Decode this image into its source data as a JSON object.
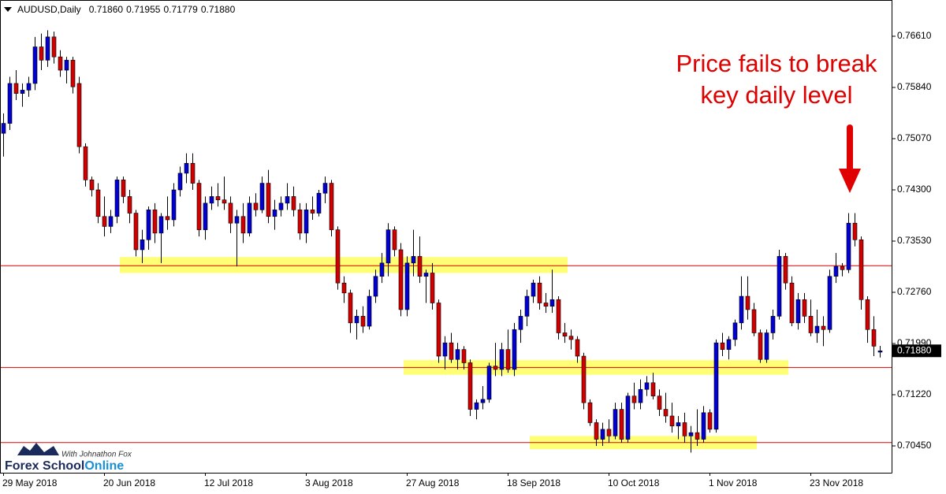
{
  "chart_data": {
    "type": "candlestick",
    "symbol": "AUDUSD,Daily",
    "header_labels": [
      "0.71860",
      "0.71955",
      "0.71779",
      "0.71880"
    ],
    "annotation": [
      "Price fails to break",
      "key daily level"
    ],
    "logo": {
      "name_a": "Forex School",
      "name_b": "Online",
      "tagline": "With Johnathon Fox"
    },
    "up_color": "#0000d0",
    "down_color": "#d00000",
    "ylim": [
      0.70047,
      0.77155
    ],
    "yticks": [
      {
        "value": 0.7661,
        "label": "0.76610"
      },
      {
        "value": 0.7584,
        "label": "0.75840"
      },
      {
        "value": 0.7507,
        "label": "0.75070"
      },
      {
        "value": 0.743,
        "label": "0.74300"
      },
      {
        "value": 0.7353,
        "label": "0.73530"
      },
      {
        "value": 0.7276,
        "label": "0.72760"
      },
      {
        "value": 0.7199,
        "label": "0.71990"
      },
      {
        "value": 0.7122,
        "label": "0.71220"
      },
      {
        "value": 0.7045,
        "label": "0.70450"
      }
    ],
    "levels": [
      0.7316,
      0.7163,
      0.705
    ],
    "zones": [
      {
        "x_range": [
          19,
          89
        ],
        "low": 0.7305,
        "high": 0.7329
      },
      {
        "x_range": [
          64,
          124
        ],
        "low": 0.7152,
        "high": 0.7174
      },
      {
        "x_range": [
          84,
          119
        ],
        "low": 0.704,
        "high": 0.706
      }
    ],
    "categories": [
      "29 May 2018",
      null,
      null,
      null,
      null,
      null,
      null,
      null,
      null,
      null,
      null,
      null,
      null,
      null,
      null,
      null,
      "20 Jun 2018",
      null,
      null,
      null,
      null,
      null,
      null,
      null,
      null,
      null,
      null,
      null,
      null,
      null,
      null,
      null,
      "12 Jul 2018",
      null,
      null,
      null,
      null,
      null,
      null,
      null,
      null,
      null,
      null,
      null,
      null,
      null,
      null,
      null,
      "3 Aug 2018",
      null,
      null,
      null,
      null,
      null,
      null,
      null,
      null,
      null,
      null,
      null,
      null,
      null,
      null,
      null,
      "27 Aug 2018",
      null,
      null,
      null,
      null,
      null,
      null,
      null,
      null,
      null,
      null,
      null,
      null,
      null,
      null,
      null,
      "18 Sep 2018",
      null,
      null,
      null,
      null,
      null,
      null,
      null,
      null,
      null,
      null,
      null,
      null,
      null,
      null,
      null,
      "10 Oct 2018",
      null,
      null,
      null,
      null,
      null,
      null,
      null,
      null,
      null,
      null,
      null,
      null,
      null,
      null,
      null,
      "1 Nov 2018",
      null,
      null,
      null,
      null,
      null,
      null,
      null,
      null,
      null,
      null,
      null,
      null,
      null,
      null,
      null,
      "23 Nov 2018",
      null,
      null,
      null,
      null,
      null,
      null,
      null,
      null,
      null,
      null,
      null
    ],
    "candles": [
      [
        0.7515,
        0.7545,
        0.748,
        0.753
      ],
      [
        0.753,
        0.76,
        0.752,
        0.759
      ],
      [
        0.759,
        0.761,
        0.7565,
        0.7575
      ],
      [
        0.7575,
        0.759,
        0.7555,
        0.758
      ],
      [
        0.758,
        0.76,
        0.757,
        0.759
      ],
      [
        0.759,
        0.766,
        0.758,
        0.7645
      ],
      [
        0.7645,
        0.7665,
        0.761,
        0.7625
      ],
      [
        0.7625,
        0.767,
        0.7615,
        0.766
      ],
      [
        0.766,
        0.7668,
        0.762,
        0.763
      ],
      [
        0.763,
        0.764,
        0.76,
        0.761
      ],
      [
        0.761,
        0.763,
        0.759,
        0.7625
      ],
      [
        0.7625,
        0.763,
        0.7575,
        0.7585
      ],
      [
        0.759,
        0.76,
        0.7485,
        0.7495
      ],
      [
        0.7495,
        0.75,
        0.7435,
        0.7445
      ],
      [
        0.7445,
        0.745,
        0.742,
        0.743
      ],
      [
        0.743,
        0.744,
        0.738,
        0.739
      ],
      [
        0.739,
        0.742,
        0.736,
        0.7375
      ],
      [
        0.7375,
        0.74,
        0.7365,
        0.739
      ],
      [
        0.739,
        0.745,
        0.738,
        0.7445
      ],
      [
        0.7445,
        0.745,
        0.741,
        0.742
      ],
      [
        0.742,
        0.743,
        0.738,
        0.7395
      ],
      [
        0.7395,
        0.74,
        0.733,
        0.734
      ],
      [
        0.734,
        0.737,
        0.732,
        0.7355
      ],
      [
        0.7355,
        0.7405,
        0.734,
        0.74
      ],
      [
        0.74,
        0.741,
        0.735,
        0.7365
      ],
      [
        0.7365,
        0.7395,
        0.732,
        0.739
      ],
      [
        0.739,
        0.742,
        0.737,
        0.7385
      ],
      [
        0.7385,
        0.744,
        0.7375,
        0.743
      ],
      [
        0.743,
        0.7465,
        0.742,
        0.7455
      ],
      [
        0.7455,
        0.7485,
        0.744,
        0.747
      ],
      [
        0.747,
        0.7485,
        0.743,
        0.744
      ],
      [
        0.744,
        0.7445,
        0.736,
        0.737
      ],
      [
        0.737,
        0.742,
        0.7355,
        0.741
      ],
      [
        0.741,
        0.7435,
        0.74,
        0.742
      ],
      [
        0.742,
        0.744,
        0.7405,
        0.7415
      ],
      [
        0.7415,
        0.745,
        0.74,
        0.741
      ],
      [
        0.741,
        0.742,
        0.7365,
        0.738
      ],
      [
        0.738,
        0.74,
        0.7315,
        0.739
      ],
      [
        0.739,
        0.741,
        0.735,
        0.7365
      ],
      [
        0.7365,
        0.742,
        0.736,
        0.741
      ],
      [
        0.741,
        0.7425,
        0.739,
        0.74
      ],
      [
        0.74,
        0.745,
        0.7395,
        0.744
      ],
      [
        0.744,
        0.746,
        0.738,
        0.739
      ],
      [
        0.739,
        0.7415,
        0.737,
        0.74
      ],
      [
        0.74,
        0.742,
        0.739,
        0.741
      ],
      [
        0.741,
        0.744,
        0.74,
        0.742
      ],
      [
        0.742,
        0.7435,
        0.739,
        0.74
      ],
      [
        0.74,
        0.741,
        0.7355,
        0.7365
      ],
      [
        0.7365,
        0.741,
        0.735,
        0.74
      ],
      [
        0.74,
        0.742,
        0.7385,
        0.7395
      ],
      [
        0.7395,
        0.743,
        0.739,
        0.7425
      ],
      [
        0.7425,
        0.745,
        0.741,
        0.744
      ],
      [
        0.744,
        0.7445,
        0.736,
        0.737
      ],
      [
        0.737,
        0.7375,
        0.728,
        0.729
      ],
      [
        0.729,
        0.73,
        0.726,
        0.7275
      ],
      [
        0.7275,
        0.728,
        0.7215,
        0.723
      ],
      [
        0.723,
        0.725,
        0.7205,
        0.724
      ],
      [
        0.724,
        0.7255,
        0.7215,
        0.7225
      ],
      [
        0.7225,
        0.728,
        0.722,
        0.727
      ],
      [
        0.727,
        0.731,
        0.726,
        0.73
      ],
      [
        0.73,
        0.7335,
        0.729,
        0.732
      ],
      [
        0.732,
        0.738,
        0.73,
        0.737
      ],
      [
        0.737,
        0.7375,
        0.733,
        0.734
      ],
      [
        0.734,
        0.735,
        0.724,
        0.725
      ],
      [
        0.725,
        0.733,
        0.724,
        0.732
      ],
      [
        0.732,
        0.737,
        0.73,
        0.733
      ],
      [
        0.733,
        0.736,
        0.729,
        0.73
      ],
      [
        0.73,
        0.731,
        0.726,
        0.7305
      ],
      [
        0.7305,
        0.732,
        0.725,
        0.726
      ],
      [
        0.726,
        0.7265,
        0.717,
        0.718
      ],
      [
        0.718,
        0.721,
        0.716,
        0.72
      ],
      [
        0.72,
        0.7215,
        0.717,
        0.7175
      ],
      [
        0.7175,
        0.72,
        0.716,
        0.719
      ],
      [
        0.719,
        0.7195,
        0.716,
        0.717
      ],
      [
        0.717,
        0.7175,
        0.709,
        0.71
      ],
      [
        0.71,
        0.7115,
        0.7085,
        0.711
      ],
      [
        0.711,
        0.7135,
        0.71,
        0.7115
      ],
      [
        0.7115,
        0.717,
        0.711,
        0.7165
      ],
      [
        0.7165,
        0.72,
        0.715,
        0.716
      ],
      [
        0.716,
        0.72,
        0.715,
        0.719
      ],
      [
        0.719,
        0.722,
        0.7155,
        0.716
      ],
      [
        0.716,
        0.723,
        0.715,
        0.722
      ],
      [
        0.722,
        0.725,
        0.72,
        0.724
      ],
      [
        0.724,
        0.728,
        0.7225,
        0.727
      ],
      [
        0.727,
        0.7295,
        0.726,
        0.729
      ],
      [
        0.729,
        0.73,
        0.725,
        0.726
      ],
      [
        0.726,
        0.7275,
        0.7245,
        0.7255
      ],
      [
        0.7255,
        0.731,
        0.7245,
        0.7265
      ],
      [
        0.7265,
        0.727,
        0.7205,
        0.7215
      ],
      [
        0.7215,
        0.723,
        0.72,
        0.721
      ],
      [
        0.721,
        0.722,
        0.719,
        0.7205
      ],
      [
        0.7205,
        0.721,
        0.717,
        0.718
      ],
      [
        0.718,
        0.7185,
        0.71,
        0.711
      ],
      [
        0.711,
        0.7115,
        0.7075,
        0.708
      ],
      [
        0.708,
        0.7085,
        0.7045,
        0.7055
      ],
      [
        0.7055,
        0.708,
        0.7045,
        0.707
      ],
      [
        0.707,
        0.7085,
        0.705,
        0.706
      ],
      [
        0.706,
        0.711,
        0.7055,
        0.71
      ],
      [
        0.71,
        0.711,
        0.705,
        0.7055
      ],
      [
        0.7055,
        0.7125,
        0.705,
        0.712
      ],
      [
        0.712,
        0.714,
        0.71,
        0.711
      ],
      [
        0.711,
        0.7145,
        0.71,
        0.713
      ],
      [
        0.713,
        0.715,
        0.712,
        0.714
      ],
      [
        0.714,
        0.7155,
        0.7115,
        0.712
      ],
      [
        0.712,
        0.713,
        0.709,
        0.71
      ],
      [
        0.71,
        0.7125,
        0.708,
        0.709
      ],
      [
        0.709,
        0.711,
        0.7065,
        0.7075
      ],
      [
        0.7075,
        0.709,
        0.7055,
        0.708
      ],
      [
        0.708,
        0.7095,
        0.705,
        0.706
      ],
      [
        0.706,
        0.7075,
        0.7035,
        0.7065
      ],
      [
        0.7065,
        0.71,
        0.7045,
        0.7055
      ],
      [
        0.7055,
        0.7105,
        0.705,
        0.7095
      ],
      [
        0.7095,
        0.71,
        0.7065,
        0.707
      ],
      [
        0.707,
        0.7205,
        0.7065,
        0.72
      ],
      [
        0.72,
        0.7215,
        0.718,
        0.719
      ],
      [
        0.719,
        0.721,
        0.7175,
        0.7205
      ],
      [
        0.7205,
        0.7235,
        0.7195,
        0.723
      ],
      [
        0.723,
        0.73,
        0.722,
        0.727
      ],
      [
        0.727,
        0.73,
        0.7235,
        0.725
      ],
      [
        0.725,
        0.726,
        0.721,
        0.7215
      ],
      [
        0.7215,
        0.722,
        0.717,
        0.7175
      ],
      [
        0.7175,
        0.722,
        0.717,
        0.7215
      ],
      [
        0.7215,
        0.725,
        0.7205,
        0.724
      ],
      [
        0.724,
        0.734,
        0.7235,
        0.733
      ],
      [
        0.733,
        0.7335,
        0.728,
        0.729
      ],
      [
        0.729,
        0.73,
        0.7225,
        0.723
      ],
      [
        0.723,
        0.7275,
        0.722,
        0.7265
      ],
      [
        0.7265,
        0.7275,
        0.723,
        0.724
      ],
      [
        0.724,
        0.7265,
        0.721,
        0.7215
      ],
      [
        0.7215,
        0.725,
        0.72,
        0.7225
      ],
      [
        0.7225,
        0.724,
        0.7195,
        0.722
      ],
      [
        0.722,
        0.731,
        0.7215,
        0.73
      ],
      [
        0.73,
        0.7335,
        0.729,
        0.7315
      ],
      [
        0.7315,
        0.732,
        0.73,
        0.731
      ],
      [
        0.731,
        0.7395,
        0.7305,
        0.738
      ],
      [
        0.738,
        0.7395,
        0.7345,
        0.7355
      ],
      [
        0.7355,
        0.736,
        0.725,
        0.7265
      ],
      [
        0.7265,
        0.727,
        0.72,
        0.722
      ],
      [
        0.722,
        0.724,
        0.718,
        0.7195
      ],
      [
        0.7186,
        0.71955,
        0.71779,
        0.7188
      ]
    ]
  }
}
